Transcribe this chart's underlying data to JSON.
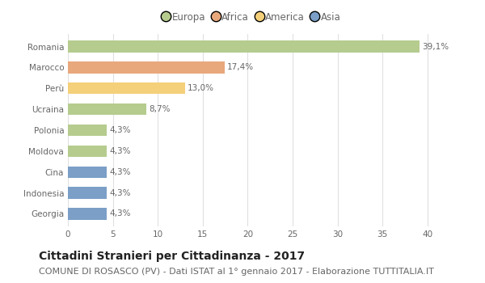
{
  "categories": [
    "Romania",
    "Marocco",
    "Perù",
    "Ucraina",
    "Polonia",
    "Moldova",
    "Cina",
    "Indonesia",
    "Georgia"
  ],
  "values": [
    39.1,
    17.4,
    13.0,
    8.7,
    4.3,
    4.3,
    4.3,
    4.3,
    4.3
  ],
  "labels": [
    "39,1%",
    "17,4%",
    "13,0%",
    "8,7%",
    "4,3%",
    "4,3%",
    "4,3%",
    "4,3%",
    "4,3%"
  ],
  "colors": [
    "#b5cc8e",
    "#e8a87c",
    "#f5d07a",
    "#b5cc8e",
    "#b5cc8e",
    "#b5cc8e",
    "#7b9fc7",
    "#7b9fc7",
    "#7b9fc7"
  ],
  "continents": [
    "Europa",
    "Africa",
    "America",
    "Asia"
  ],
  "legend_colors": [
    "#b5cc8e",
    "#e8a87c",
    "#f5d07a",
    "#7b9fc7"
  ],
  "xlim": [
    0,
    41
  ],
  "xticks": [
    0,
    5,
    10,
    15,
    20,
    25,
    30,
    35,
    40
  ],
  "title": "Cittadini Stranieri per Cittadinanza - 2017",
  "subtitle": "COMUNE DI ROSASCO (PV) - Dati ISTAT al 1° gennaio 2017 - Elaborazione TUTTITALIA.IT",
  "title_fontsize": 10,
  "subtitle_fontsize": 8,
  "label_fontsize": 7.5,
  "tick_fontsize": 7.5,
  "legend_fontsize": 8.5,
  "bar_height": 0.55,
  "background_color": "#ffffff",
  "grid_color": "#e0e0e0"
}
